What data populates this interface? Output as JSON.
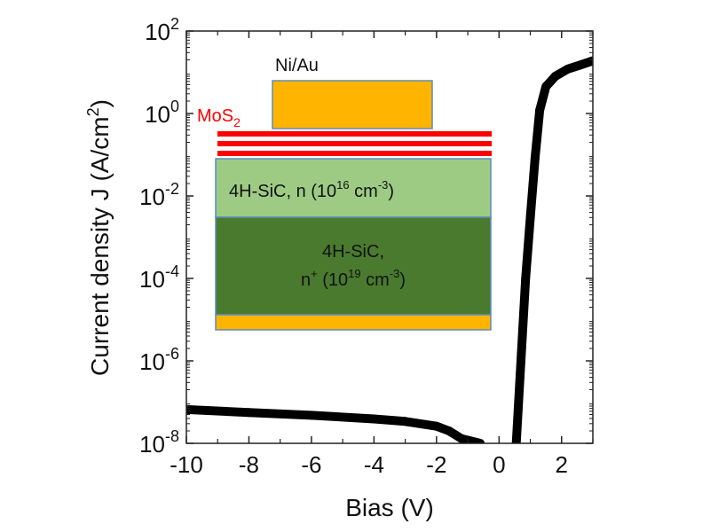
{
  "chart_data": {
    "type": "line",
    "xlabel": "Bias (V)",
    "ylabel": "Current density J (A/cm²)",
    "ylabel_parts": {
      "main": "Current density J (A/cm",
      "sup": "2",
      "end": ")"
    },
    "xlim": [
      -10,
      3
    ],
    "ylim": [
      1e-08,
      100
    ],
    "yscale": "log",
    "x_ticks": [
      -10,
      -8,
      -6,
      -4,
      -2,
      0,
      2
    ],
    "x_tick_labels": [
      "-10",
      "-8",
      "-6",
      "-4",
      "-2",
      "0",
      "2"
    ],
    "y_ticks": [
      {
        "base": "10",
        "exp": "2",
        "value": 2
      },
      {
        "base": "10",
        "exp": "0",
        "value": 0
      },
      {
        "base": "10",
        "exp": "-2",
        "value": -2
      },
      {
        "base": "10",
        "exp": "-4",
        "value": -4
      },
      {
        "base": "10",
        "exp": "-6",
        "value": -6
      },
      {
        "base": "10",
        "exp": "-8",
        "value": -8
      }
    ],
    "grid": false,
    "series": [
      {
        "color": "#000000",
        "segments": [
          {
            "x": [
              -10,
              -8,
              -6,
              -4,
              -3,
              -2,
              -1.6,
              -1.2,
              -0.6
            ],
            "y": [
              6.6e-08,
              5.6e-08,
              4.8e-08,
              3.9e-08,
              3.4e-08,
              2.6e-08,
              2e-08,
              1.3e-08,
              1e-08
            ]
          },
          {
            "x": [
              0.55,
              0.7,
              0.85,
              1.0,
              1.15,
              1.3,
              1.5,
              1.8,
              2.2,
              2.6,
              3.0
            ],
            "y": [
              1e-08,
              1e-06,
              0.0001,
              0.003,
              0.08,
              1.2,
              4.5,
              8,
              12,
              15,
              19
            ]
          }
        ]
      }
    ],
    "inset": {
      "contact_label": "Ni/Au",
      "mos2_label": "MoS",
      "mos2_sub": "2",
      "layer1": {
        "text": "4H-SiC, n (10",
        "sup1": "16",
        "mid": " cm",
        "sup2": "-3",
        "end": ")"
      },
      "layer2": {
        "line1": "4H-SiC,",
        "n": "n",
        "nsup": "+",
        "text": " (10",
        "sup1": "19",
        "mid": " cm",
        "sup2": "-3",
        "end": ")"
      },
      "colors": {
        "metal": "#FFB400",
        "mos2": "#FF0000",
        "n_layer": "#9DCB84",
        "nplus_layer": "#4A7A2E",
        "border": "#5B8DB8"
      }
    }
  }
}
